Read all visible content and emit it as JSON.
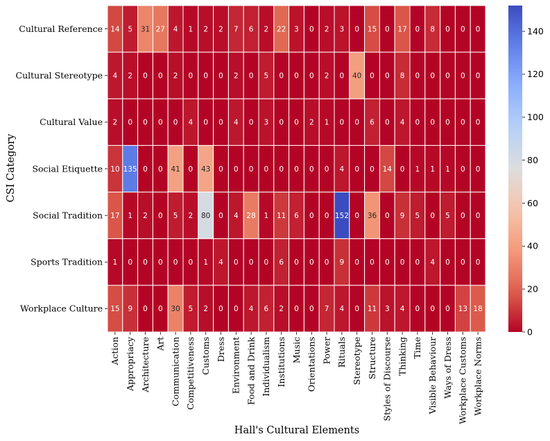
{
  "chart_data": {
    "type": "heatmap",
    "title": "",
    "xlabel": "Hall's Cultural Elements",
    "ylabel": "CSI Category",
    "rows": [
      "Cultural Reference",
      "Cultural Stereotype",
      "Cultural Value",
      "Social Etiquette",
      "Social Tradition",
      "Sports Tradition",
      "Workplace Culture"
    ],
    "columns": [
      "Action",
      "Appropriacy",
      "Architecture",
      "Art",
      "Communication",
      "Competitiveness",
      "Customs",
      "Dress",
      "Environment",
      "Food and Drink",
      "Individualism",
      "Institutions",
      "Music",
      "Orientations",
      "Power",
      "Rituals",
      "Stereotype",
      "Structure",
      "Styles of Discourse",
      "Thinking",
      "Time",
      "Visible Behaviour",
      "Ways of Dress",
      "Workplace Customs",
      "Workplace Norms"
    ],
    "values": [
      [
        14,
        5,
        31,
        27,
        4,
        1,
        2,
        2,
        7,
        6,
        2,
        22,
        3,
        0,
        2,
        3,
        0,
        15,
        0,
        17,
        0,
        8,
        0,
        0,
        0
      ],
      [
        4,
        2,
        0,
        0,
        2,
        0,
        0,
        0,
        2,
        0,
        5,
        0,
        0,
        0,
        2,
        0,
        40,
        0,
        0,
        8,
        0,
        0,
        0,
        0,
        0
      ],
      [
        2,
        0,
        0,
        0,
        0,
        4,
        0,
        0,
        4,
        0,
        3,
        0,
        0,
        2,
        1,
        0,
        0,
        6,
        0,
        4,
        0,
        0,
        0,
        0,
        0
      ],
      [
        10,
        135,
        0,
        0,
        41,
        0,
        43,
        0,
        0,
        0,
        0,
        0,
        0,
        0,
        0,
        4,
        0,
        0,
        14,
        0,
        1,
        1,
        1,
        0,
        0
      ],
      [
        17,
        1,
        2,
        0,
        5,
        2,
        80,
        0,
        4,
        28,
        1,
        11,
        6,
        0,
        0,
        152,
        0,
        36,
        0,
        9,
        5,
        0,
        5,
        0,
        0
      ],
      [
        1,
        0,
        0,
        0,
        0,
        0,
        1,
        4,
        0,
        0,
        0,
        6,
        0,
        0,
        0,
        9,
        0,
        0,
        0,
        0,
        0,
        4,
        0,
        0,
        0
      ],
      [
        15,
        9,
        0,
        0,
        30,
        5,
        2,
        0,
        0,
        4,
        6,
        2,
        0,
        0,
        7,
        4,
        0,
        11,
        3,
        4,
        0,
        0,
        0,
        13,
        18
      ]
    ],
    "vmin": 0,
    "vmax": 152,
    "colormap": "coolwarm_r",
    "colorbar_ticks": [
      0,
      20,
      40,
      60,
      80,
      100,
      120,
      140
    ],
    "colorbar_tick_labels": [
      "0",
      "20",
      "40",
      "60",
      "80",
      "100",
      "120",
      "140"
    ]
  }
}
